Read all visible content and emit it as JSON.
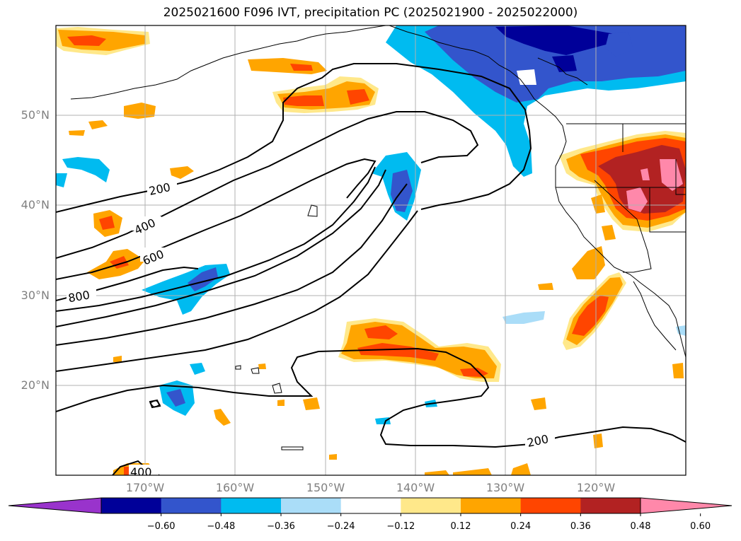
{
  "title": "2025021600 F096 IVT, precipitation PC (2025021900 - 2025022000)",
  "latitude_labels": [
    "50°N",
    "40°N",
    "30°N",
    "20°N"
  ],
  "longitude_labels": [
    "170°W",
    "160°W",
    "150°W",
    "140°W",
    "130°W",
    "120°W"
  ],
  "contour_labels": [
    "200",
    "400",
    "600",
    "800",
    "200",
    "400"
  ],
  "colorbar": {
    "ticks": [
      "−0.60",
      "−0.48",
      "−0.36",
      "−0.24",
      "−0.12",
      "0.12",
      "0.24",
      "0.36",
      "0.48",
      "0.60"
    ],
    "colors": [
      "#9933cc",
      "#000099",
      "#3355cc",
      "#00bbf0",
      "#aaddf8",
      "#ffffff",
      "#ffe88a",
      "#ffa500",
      "#ff4500",
      "#b22222",
      "#ff88aa"
    ]
  }
}
